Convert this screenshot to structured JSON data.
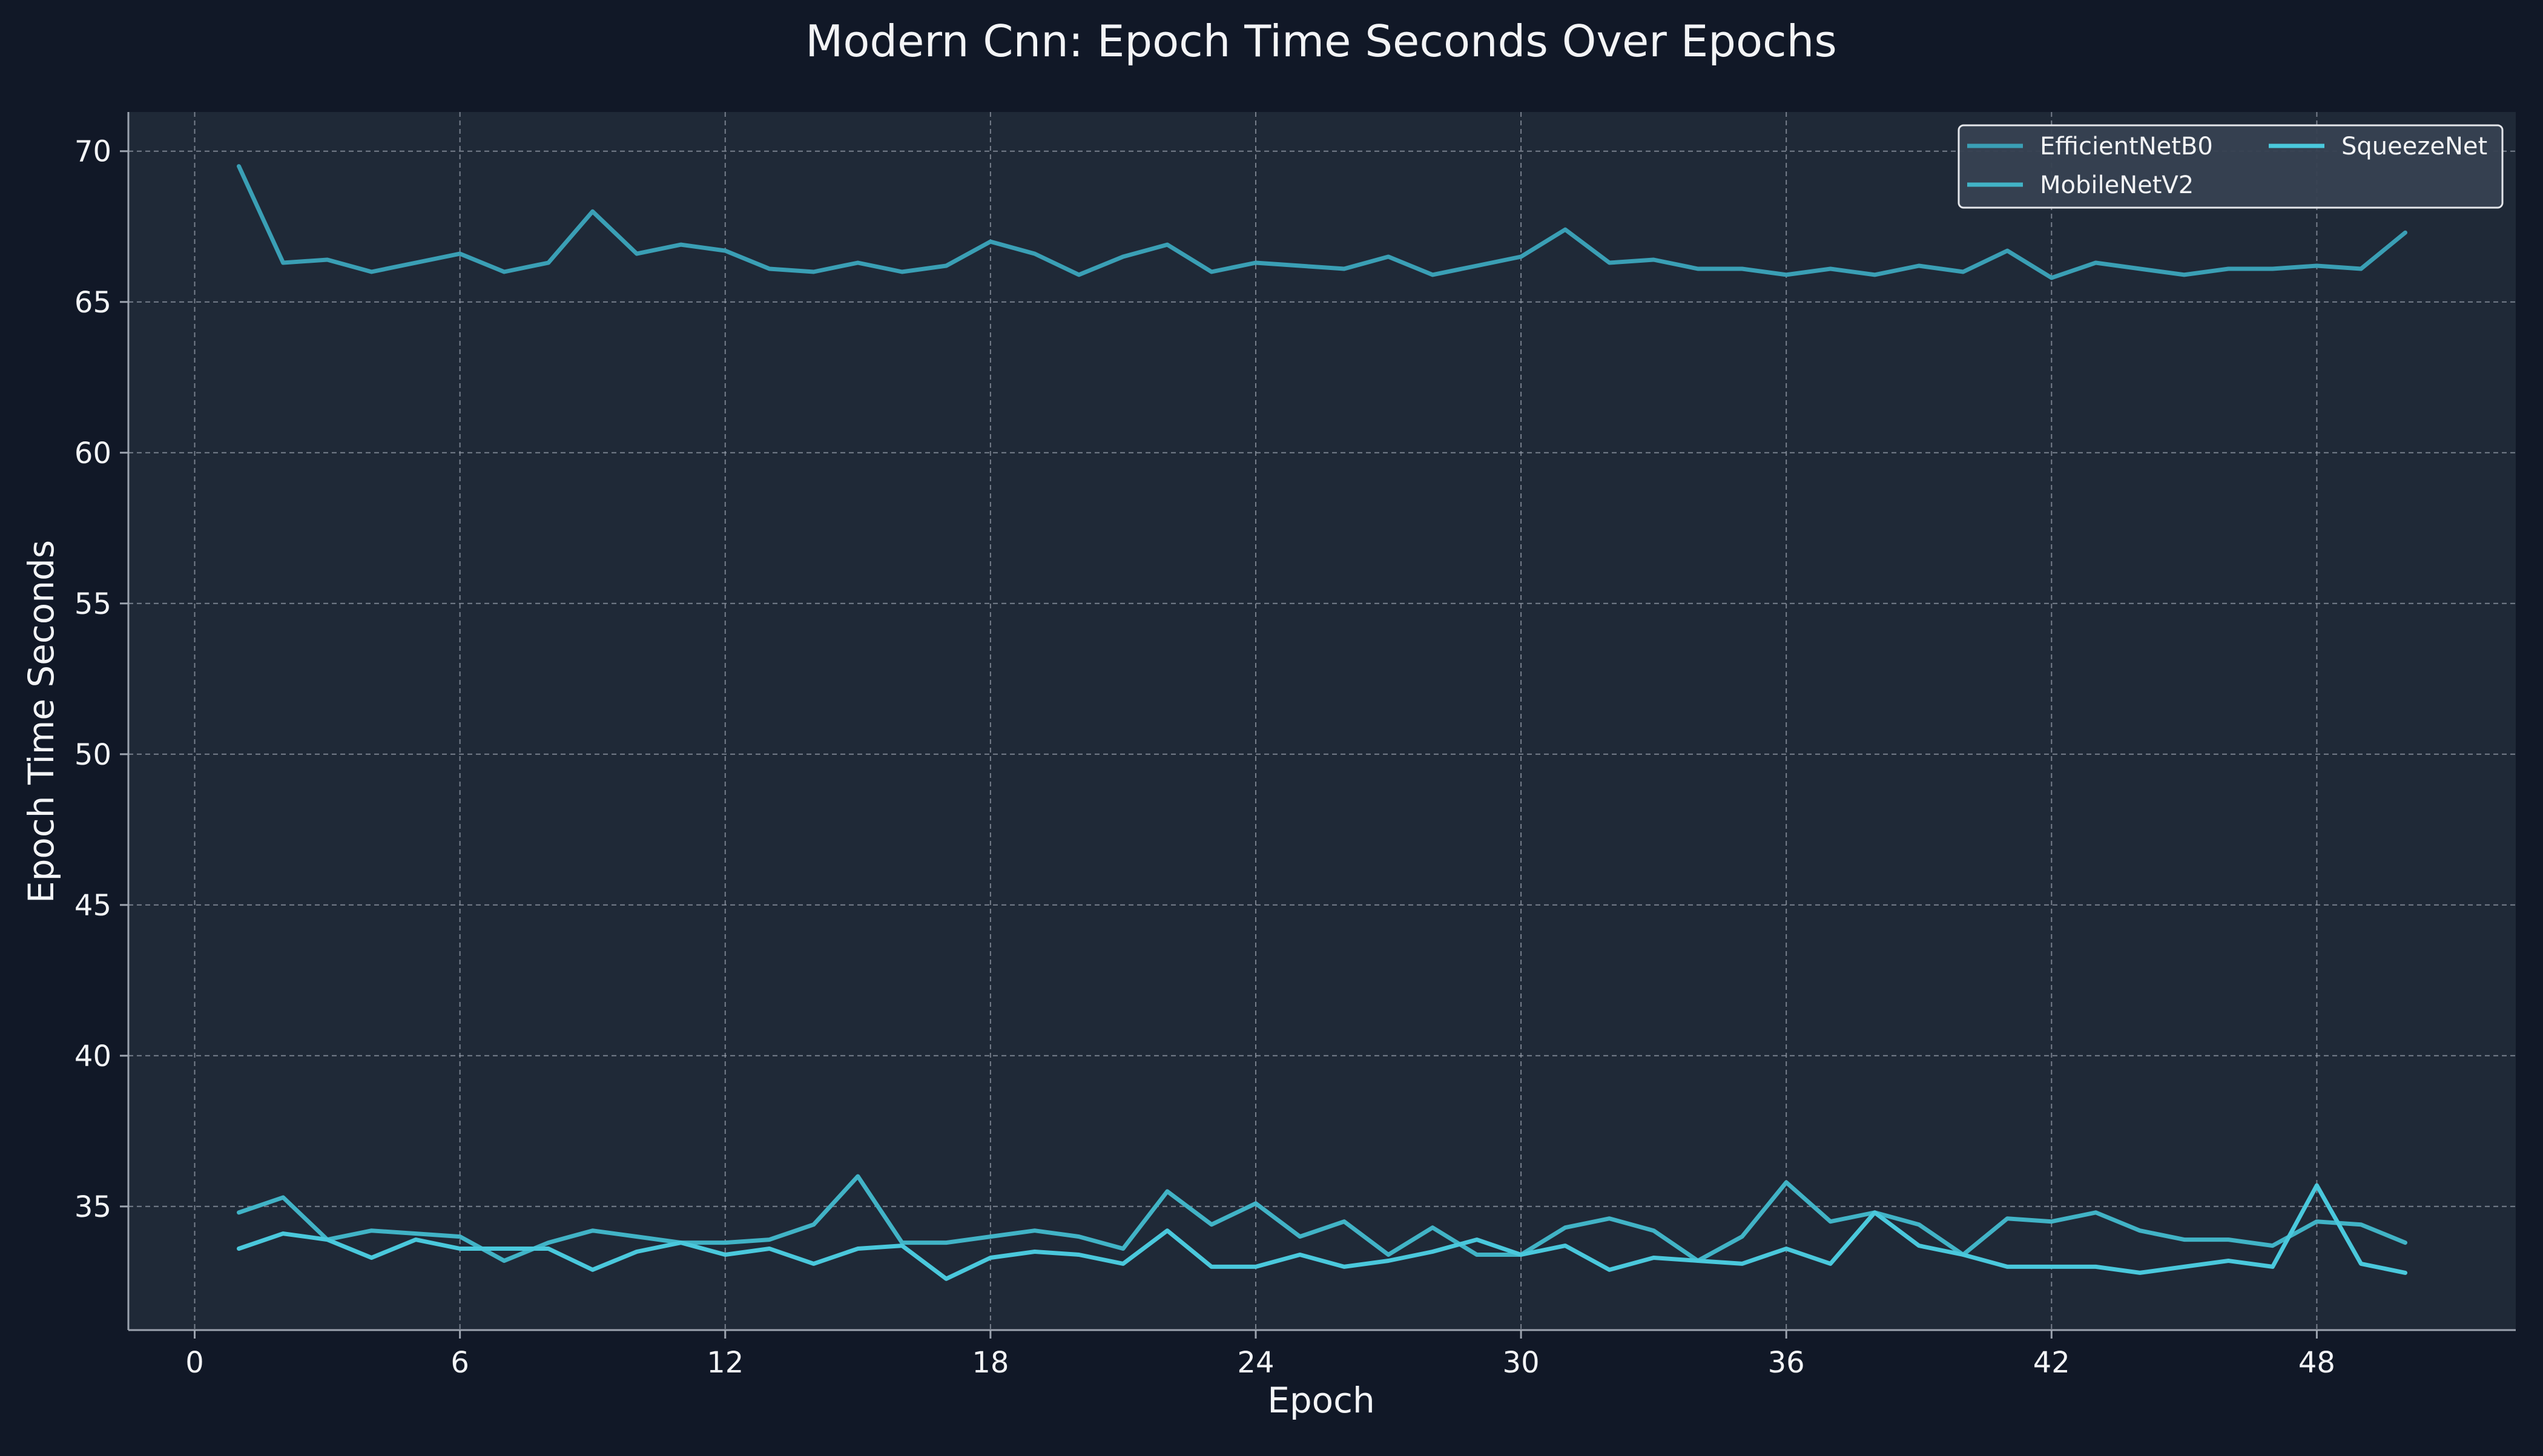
{
  "chart_data": {
    "type": "line",
    "title": "Modern Cnn: Epoch Time Seconds Over Epochs",
    "xlabel": "Epoch",
    "ylabel": "Epoch Time Seconds",
    "xlim": [
      -1.5,
      52.5
    ],
    "ylim": [
      30.9,
      71.3
    ],
    "xticks": [
      0,
      6,
      12,
      18,
      24,
      30,
      36,
      42,
      48
    ],
    "yticks": [
      35,
      40,
      45,
      50,
      55,
      60,
      65,
      70
    ],
    "grid": true,
    "legend_position": "upper-right",
    "x": [
      1,
      2,
      3,
      4,
      5,
      6,
      7,
      8,
      9,
      10,
      11,
      12,
      13,
      14,
      15,
      16,
      17,
      18,
      19,
      20,
      21,
      22,
      23,
      24,
      25,
      26,
      27,
      28,
      29,
      30,
      31,
      32,
      33,
      34,
      35,
      36,
      37,
      38,
      39,
      40,
      41,
      42,
      43,
      44,
      45,
      46,
      47,
      48,
      49,
      50
    ],
    "series": [
      {
        "name": "EfficientNetB0",
        "color": "#3a9fb5",
        "values": [
          69.5,
          66.3,
          66.4,
          66.0,
          66.3,
          66.6,
          66.0,
          66.3,
          68.0,
          66.6,
          66.9,
          66.7,
          66.1,
          66.0,
          66.3,
          66.0,
          66.2,
          67.0,
          66.6,
          65.9,
          66.5,
          66.9,
          66.0,
          66.3,
          66.2,
          66.1,
          66.5,
          65.9,
          66.2,
          66.5,
          67.4,
          66.3,
          66.4,
          66.1,
          66.1,
          65.9,
          66.1,
          65.9,
          66.2,
          66.0,
          66.7,
          65.8,
          66.3,
          66.1,
          65.9,
          66.1,
          66.1,
          66.2,
          66.1,
          67.3
        ]
      },
      {
        "name": "MobileNetV2",
        "color": "#41b3c6",
        "values": [
          34.8,
          35.3,
          33.9,
          34.2,
          34.1,
          34.0,
          33.2,
          33.8,
          34.2,
          34.0,
          33.8,
          33.8,
          33.9,
          34.4,
          36.0,
          33.8,
          33.8,
          34.0,
          34.2,
          34.0,
          33.6,
          35.5,
          34.4,
          35.1,
          34.0,
          34.5,
          33.4,
          34.3,
          33.4,
          33.4,
          34.3,
          34.6,
          34.2,
          33.2,
          34.0,
          35.8,
          34.5,
          34.8,
          34.4,
          33.4,
          34.6,
          34.5,
          34.8,
          34.2,
          33.9,
          33.9,
          33.7,
          34.5,
          34.4,
          33.8
        ]
      },
      {
        "name": "SqueezeNet",
        "color": "#4ac8dc",
        "values": [
          33.6,
          34.1,
          33.9,
          33.3,
          33.9,
          33.6,
          33.6,
          33.6,
          32.9,
          33.5,
          33.8,
          33.4,
          33.6,
          33.1,
          33.6,
          33.7,
          32.6,
          33.3,
          33.5,
          33.4,
          33.1,
          34.2,
          33.0,
          33.0,
          33.4,
          33.0,
          33.2,
          33.5,
          33.9,
          33.4,
          33.7,
          32.9,
          33.3,
          33.2,
          33.1,
          33.6,
          33.1,
          34.8,
          33.7,
          33.4,
          33.0,
          33.0,
          33.0,
          32.8,
          33.0,
          33.2,
          33.0,
          35.7,
          33.1,
          32.8
        ]
      }
    ]
  }
}
